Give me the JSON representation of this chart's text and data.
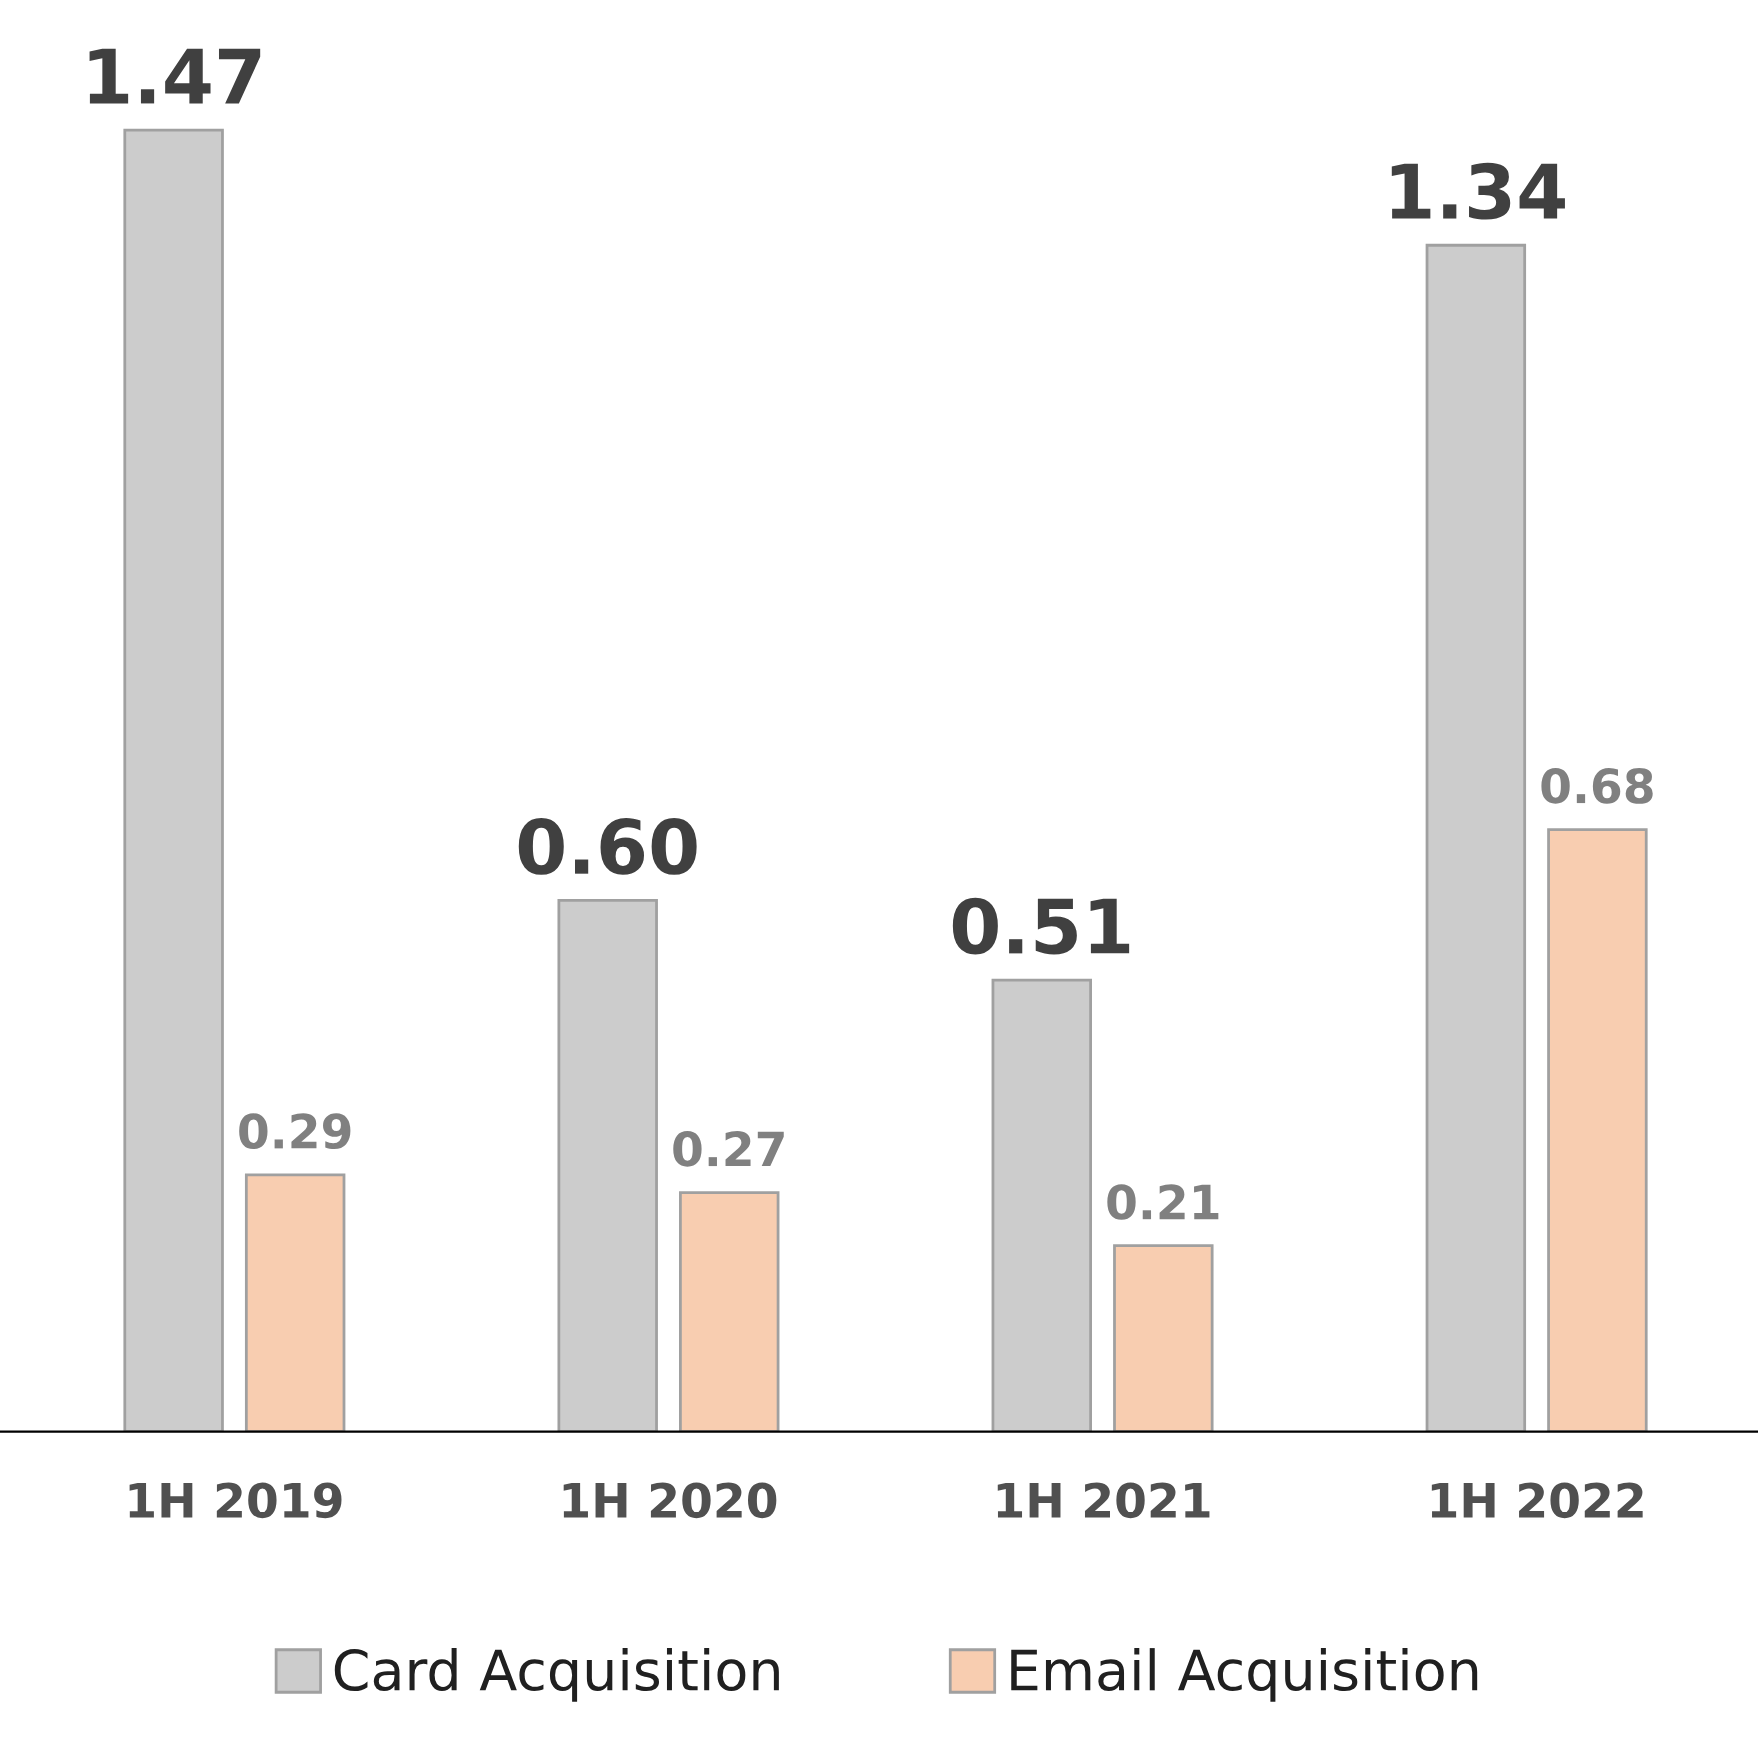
{
  "chart_data": {
    "type": "bar",
    "categories": [
      "1H 2019",
      "1H 2020",
      "1H 2021",
      "1H 2022"
    ],
    "series": [
      {
        "name": "Card Acquisition",
        "color": "#cccccc",
        "values": [
          1.47,
          0.6,
          0.51,
          1.34
        ],
        "value_labels": [
          "1.47",
          "0.60",
          "0.51",
          "1.34"
        ]
      },
      {
        "name": "Email Acquisition",
        "color": "#f8cdb0",
        "values": [
          0.29,
          0.27,
          0.21,
          0.68
        ],
        "value_labels": [
          "0.29",
          "0.27",
          "0.21",
          "0.68"
        ]
      }
    ],
    "legend": "bottom",
    "grid": false
  }
}
